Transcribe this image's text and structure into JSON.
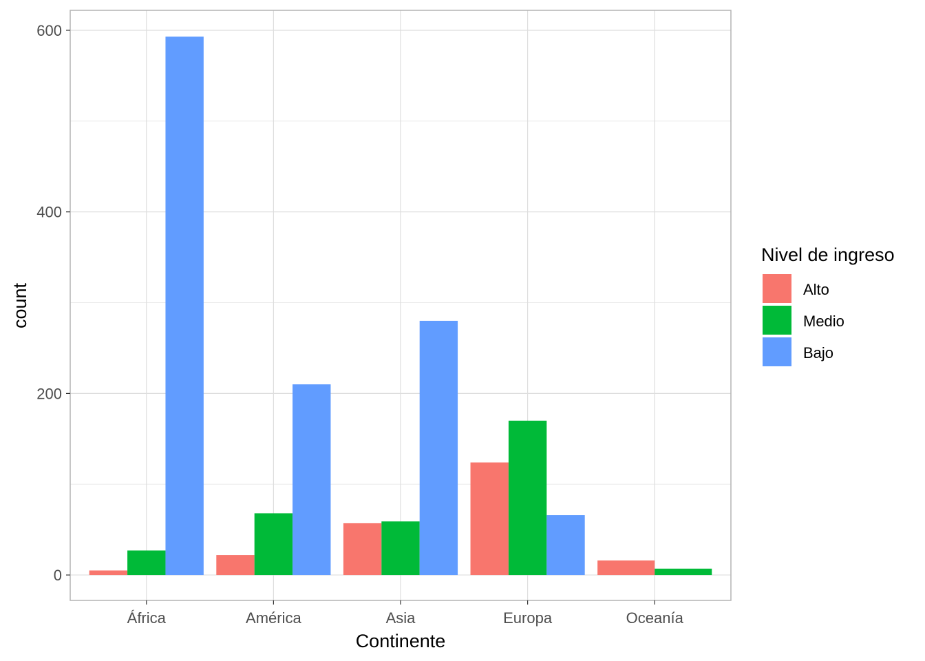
{
  "chart_data": {
    "type": "bar",
    "xlabel": "Continente",
    "ylabel": "count",
    "categories": [
      "África",
      "América",
      "Asia",
      "Europa",
      "Oceanía"
    ],
    "series": [
      {
        "name": "Alto",
        "color": "#F8766D",
        "values": [
          5,
          22,
          57,
          124,
          16
        ]
      },
      {
        "name": "Medio",
        "color": "#00BA38",
        "values": [
          27,
          68,
          59,
          170,
          7
        ]
      },
      {
        "name": "Bajo",
        "color": "#619CFF",
        "values": [
          593,
          210,
          280,
          66,
          null
        ]
      }
    ],
    "yticks": [
      "0",
      "200",
      "400",
      "600"
    ],
    "ylim": [
      -28,
      622
    ],
    "grid": true,
    "legend": {
      "title": "Nivel de ingreso",
      "position": "right"
    }
  }
}
